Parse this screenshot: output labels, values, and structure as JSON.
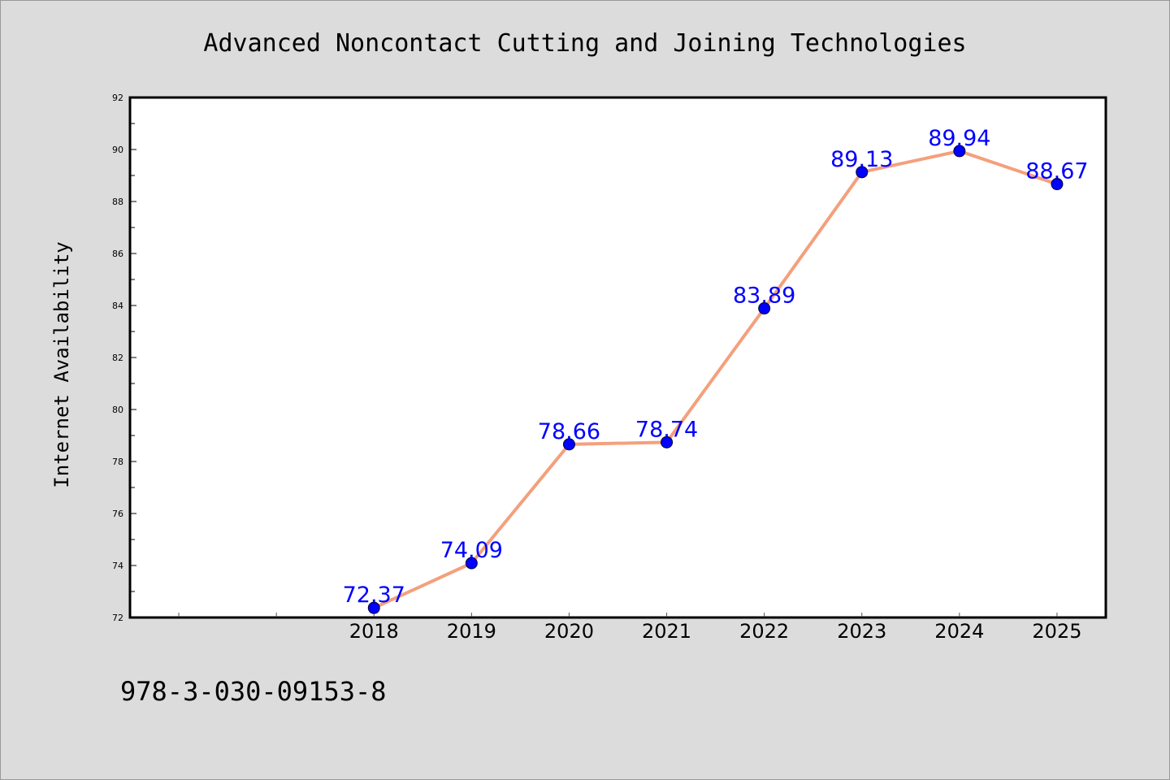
{
  "chart_data": {
    "type": "line",
    "title": "Advanced Noncontact Cutting and Joining Technologies",
    "xlabel": "",
    "ylabel": "Internet Availability",
    "categories": [
      "2018",
      "2019",
      "2020",
      "2021",
      "2022",
      "2023",
      "2024",
      "2025"
    ],
    "values": [
      72.37,
      74.09,
      78.66,
      78.74,
      83.89,
      89.13,
      89.94,
      88.67
    ],
    "data_labels": [
      "72.37",
      "74.09",
      "78.66",
      "78.74",
      "83.89",
      "89.13",
      "89.94",
      "88.67"
    ],
    "x_range": [
      2015.5,
      2025.5
    ],
    "ylim": [
      72,
      92
    ],
    "yticks": [
      72,
      74,
      76,
      78,
      80,
      82,
      84,
      86,
      88,
      90,
      92
    ],
    "yticks_labels": [
      "72",
      "74",
      "76",
      "78",
      "80",
      "82",
      "84",
      "86",
      "88",
      "90",
      "92"
    ],
    "grid": false,
    "legend": "none",
    "colors": {
      "line": "#f4a07c",
      "marker": "#0000ff",
      "data_label": "#0000ff",
      "background": "#dcdcdc",
      "plot_area": "#ffffff"
    }
  },
  "footer": {
    "isbn": "978-3-030-09153-8"
  }
}
